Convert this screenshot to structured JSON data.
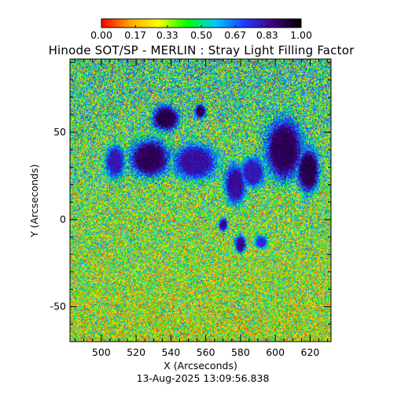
{
  "chart_data": {
    "type": "heatmap",
    "title": "Hinode SOT/SP - MERLIN : Stray Light Filling Factor",
    "xlabel": "X (Arcseconds)",
    "ylabel": "Y (Arcseconds)",
    "timestamp": "13-Aug-2025 13:09:56.838",
    "xlim": [
      482,
      632
    ],
    "ylim": [
      -70,
      92
    ],
    "x_ticks": [
      500,
      520,
      540,
      560,
      580,
      600,
      620
    ],
    "y_ticks": [
      50,
      0,
      -50
    ],
    "colorbar": {
      "min": 0.0,
      "max": 1.0,
      "tick_values": [
        0.0,
        0.17,
        0.33,
        0.5,
        0.67,
        0.83,
        1.0
      ],
      "tick_labels": [
        "0.00",
        "0.17",
        "0.33",
        "0.50",
        "0.67",
        "0.83",
        "1.00"
      ],
      "colors": [
        "#ff0000",
        "#ffa500",
        "#ffff00",
        "#00ff00",
        "#00c8ff",
        "#1e3cff",
        "#400080",
        "#000000"
      ]
    },
    "low_value_regions": [
      {
        "x": 537,
        "y": 58,
        "rx": 12,
        "ry": 11,
        "value": 0.92
      },
      {
        "x": 557,
        "y": 62,
        "rx": 5,
        "ry": 6,
        "value": 0.9
      },
      {
        "x": 528,
        "y": 35,
        "rx": 18,
        "ry": 17,
        "value": 0.9
      },
      {
        "x": 508,
        "y": 33,
        "rx": 9,
        "ry": 15,
        "value": 0.8
      },
      {
        "x": 554,
        "y": 33,
        "rx": 20,
        "ry": 16,
        "value": 0.82
      },
      {
        "x": 577,
        "y": 20,
        "rx": 10,
        "ry": 18,
        "value": 0.83
      },
      {
        "x": 605,
        "y": 40,
        "rx": 17,
        "ry": 28,
        "value": 0.9
      },
      {
        "x": 619,
        "y": 28,
        "rx": 10,
        "ry": 20,
        "value": 0.92
      },
      {
        "x": 587,
        "y": 27,
        "rx": 11,
        "ry": 14,
        "value": 0.8
      },
      {
        "x": 570,
        "y": -3,
        "rx": 4,
        "ry": 6,
        "value": 0.85
      },
      {
        "x": 580,
        "y": -14,
        "rx": 5,
        "ry": 8,
        "value": 0.85
      },
      {
        "x": 592,
        "y": -13,
        "rx": 6,
        "ry": 6,
        "value": 0.75
      }
    ]
  }
}
